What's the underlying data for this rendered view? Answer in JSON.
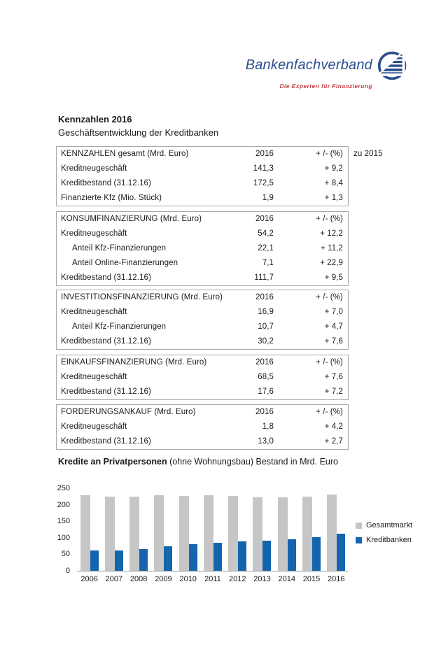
{
  "logo": {
    "brand": "Bankenfachverband",
    "tagline": "Die Experten für Finanzierung",
    "brand_color": "#2d4f8e",
    "tagline_color": "#c4424a"
  },
  "title": {
    "line1": "Kennzahlen 2016",
    "line2": "Geschäftsentwicklung der Kreditbanken"
  },
  "tables": [
    {
      "header": {
        "label": "KENNZAHLEN gesamt (Mrd. Euro)",
        "year": "2016",
        "change": "+ /- (%)"
      },
      "note": "zu 2015",
      "rows": [
        {
          "label": "Kreditneugeschäft",
          "value": "141,3",
          "change": "+ 9,2",
          "indent": false
        },
        {
          "label": "Kreditbestand (31.12.16)",
          "value": "172,5",
          "change": "+ 8,4",
          "indent": false
        },
        {
          "label": "Finanzierte Kfz (Mio. Stück)",
          "value": "1,9",
          "change": "+ 1,3",
          "indent": false
        }
      ]
    },
    {
      "header": {
        "label": "KONSUMFINANZIERUNG (Mrd. Euro)",
        "year": "2016",
        "change": "+ /- (%)"
      },
      "rows": [
        {
          "label": "Kreditneugeschäft",
          "value": "54,2",
          "change": "+ 12,2",
          "indent": false
        },
        {
          "label": "Anteil Kfz-Finanzierungen",
          "value": "22,1",
          "change": "+ 11,2",
          "indent": true
        },
        {
          "label": "Anteil Online-Finanzierungen",
          "value": "7,1",
          "change": "+ 22,9",
          "indent": true
        },
        {
          "label": "Kreditbestand (31.12.16)",
          "value": "111,7",
          "change": "+ 9,5",
          "indent": false
        }
      ]
    },
    {
      "header": {
        "label": "INVESTITIONSFINANZIERUNG (Mrd. Euro)",
        "year": "2016",
        "change": "+ /- (%)"
      },
      "rows": [
        {
          "label": "Kreditneugeschäft",
          "value": "16,9",
          "change": "+ 7,0",
          "indent": false
        },
        {
          "label": "Anteil Kfz-Finanzierungen",
          "value": "10,7",
          "change": "+ 4,7",
          "indent": true
        },
        {
          "label": "Kreditbestand (31.12.16)",
          "value": "30,2",
          "change": "+ 7,6",
          "indent": false
        }
      ]
    },
    {
      "header": {
        "label": "EINKAUFSFINANZIERUNG (Mrd. Euro)",
        "year": "2016",
        "change": "+ /- (%)"
      },
      "rows": [
        {
          "label": "Kreditneugeschäft",
          "value": "68,5",
          "change": "+ 7,6",
          "indent": false
        },
        {
          "label": "Kreditbestand (31.12.16)",
          "value": "17,6",
          "change": "+ 7,2",
          "indent": false
        }
      ]
    },
    {
      "header": {
        "label": "FORDERUNGSANKAUF (Mrd. Euro)",
        "year": "2016",
        "change": "+ /- (%)"
      },
      "rows": [
        {
          "label": "Kreditneugeschäft",
          "value": "1,8",
          "change": "+ 4,2",
          "indent": false
        },
        {
          "label": "Kreditbestand (31.12.16)",
          "value": "13,0",
          "change": "+ 2,7",
          "indent": false
        }
      ]
    }
  ],
  "chart": {
    "title_bold": "Kredite an Privatpersonen",
    "title_rest": " (ohne Wohnungsbau) Bestand in Mrd. Euro"
  },
  "chart_data": {
    "type": "bar",
    "title": "Kredite an Privatpersonen (ohne Wohnungsbau) Bestand in Mrd. Euro",
    "categories": [
      "2006",
      "2007",
      "2008",
      "2009",
      "2010",
      "2011",
      "2012",
      "2013",
      "2014",
      "2015",
      "2016"
    ],
    "series": [
      {
        "name": "Gesamtmarkt",
        "color": "#c6c6c6",
        "values": [
          229,
          224,
          225,
          228,
          227,
          229,
          226,
          223,
          222,
          225,
          231
        ]
      },
      {
        "name": "Kreditbanken",
        "color": "#1565ae",
        "values": [
          62,
          62,
          66,
          75,
          80,
          85,
          90,
          92,
          96,
          102,
          112
        ]
      }
    ],
    "xlabel": "",
    "ylabel": "",
    "ylim": [
      0,
      250
    ],
    "yticks": [
      0,
      50,
      100,
      150,
      200,
      250
    ],
    "grid": false,
    "legend_position": "right"
  }
}
